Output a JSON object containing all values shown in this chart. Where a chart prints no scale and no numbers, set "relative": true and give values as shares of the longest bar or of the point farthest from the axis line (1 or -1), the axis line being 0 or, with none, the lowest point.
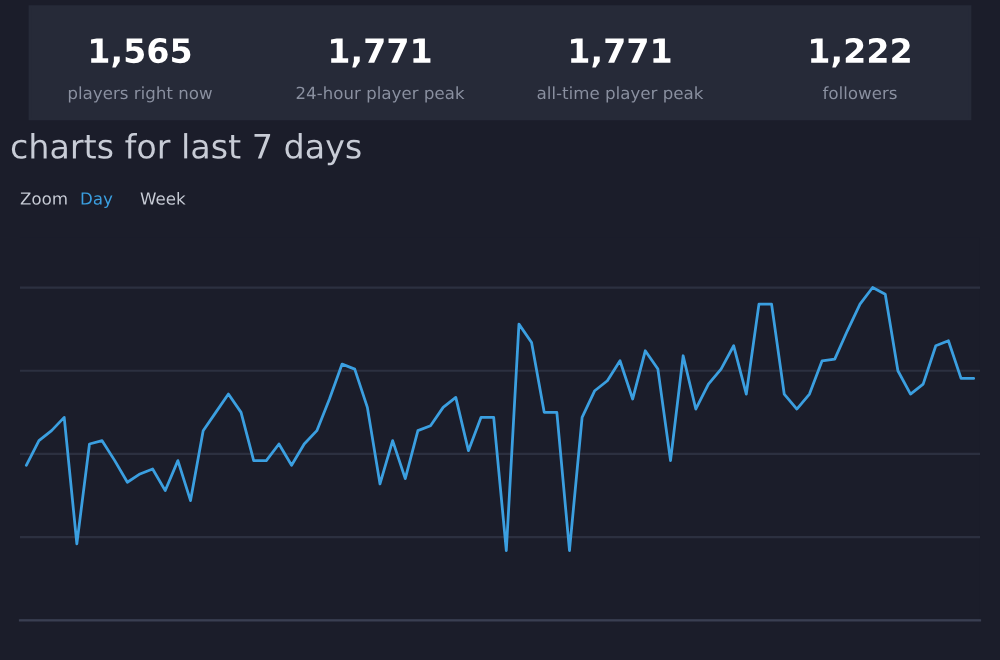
{
  "chart_data": {
    "type": "line",
    "title": "charts for last 7 days",
    "relative": true,
    "grid": "y",
    "annotations": [
      "1,565",
      "players right now",
      "1,771",
      "24-hour player peak",
      "1,771",
      "all-time player peak",
      "1,222",
      "followers",
      "Zoom",
      "Day",
      "Week"
    ],
    "categories": [
      null,
      null,
      null,
      null,
      null,
      null,
      null,
      null,
      null,
      null,
      null,
      null,
      null,
      null,
      null,
      null,
      null,
      null,
      null,
      null,
      null,
      null,
      null,
      null,
      null,
      null,
      null,
      null,
      null,
      null,
      null,
      null,
      null,
      null,
      null,
      null,
      null,
      null,
      null,
      null,
      null,
      null,
      null,
      null,
      null,
      null,
      null,
      null,
      null,
      null,
      null,
      null,
      null,
      null,
      null,
      null,
      null,
      null,
      null,
      null,
      null,
      null,
      null,
      null,
      null,
      null,
      null,
      null,
      null,
      null,
      null,
      null,
      null,
      null,
      null,
      null
    ],
    "series": [
      {
        "color": "#3b9fe0",
        "values": [
          0.466,
          0.54,
          0.57,
          0.61,
          0.23,
          0.53,
          0.54,
          0.48,
          0.415,
          0.44,
          0.455,
          0.39,
          0.48,
          0.36,
          0.57,
          0.625,
          0.68,
          0.625,
          0.48,
          0.48,
          0.53,
          0.466,
          0.53,
          0.57,
          0.665,
          0.77,
          0.755,
          0.64,
          0.41,
          0.54,
          0.426,
          0.57,
          0.585,
          0.64,
          0.67,
          0.51,
          0.61,
          0.61,
          0.21,
          0.89,
          0.835,
          0.625,
          0.625,
          0.21,
          0.61,
          0.69,
          0.72,
          0.78,
          0.665,
          0.81,
          0.755,
          0.48,
          0.795,
          0.635,
          0.71,
          0.755,
          0.825,
          0.68,
          0.95,
          0.95,
          0.68,
          0.635,
          0.68,
          0.78,
          0.785,
          0.87,
          0.95,
          1.0,
          0.98,
          0.75,
          0.68,
          0.71,
          0.825,
          0.84,
          0.727,
          0.727
        ]
      }
    ]
  }
}
